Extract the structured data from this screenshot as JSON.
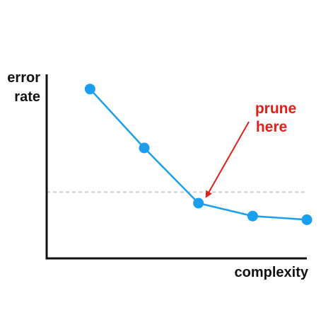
{
  "chart_data": {
    "type": "line",
    "title": "",
    "xlabel": "complexity",
    "ylabel": [
      "error",
      "rate"
    ],
    "grid": false,
    "legend": "none",
    "x": [
      1,
      2,
      3,
      4,
      5
    ],
    "y": [
      0.92,
      0.6,
      0.3,
      0.23,
      0.21
    ],
    "xlim": [
      0.2,
      5.0
    ],
    "ylim": [
      0,
      1.0
    ],
    "reference_line": {
      "y": 0.36,
      "style": "dashed",
      "color": "#cccccc"
    },
    "series": [
      {
        "values": [
          0.92,
          0.6,
          0.3,
          0.23,
          0.21
        ],
        "color": "#1a9ff0"
      }
    ],
    "annotation": {
      "lines": [
        "prune",
        "here"
      ],
      "target_index": 2,
      "color": "#e0211b"
    },
    "axis_color": "#111111"
  }
}
